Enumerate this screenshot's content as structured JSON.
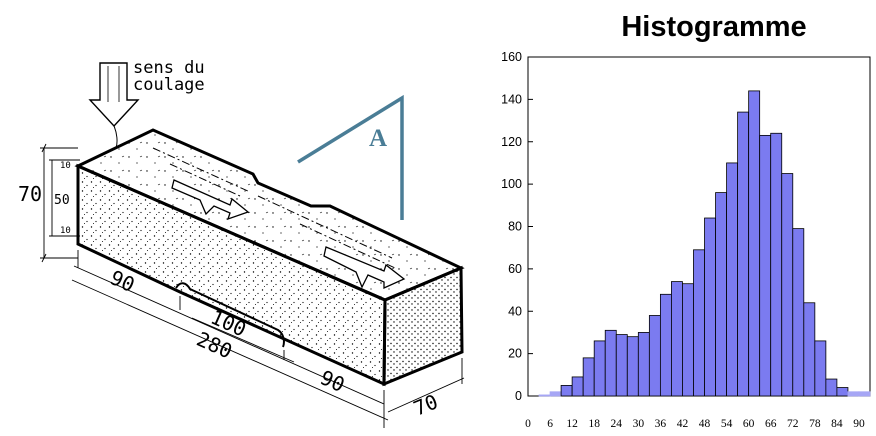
{
  "specimen": {
    "pour_label_line1": "sens du",
    "pour_label_line2": "coulage",
    "section_marker": "A",
    "dims": {
      "height_total": "70",
      "height_middle": "50",
      "offset_top": "10",
      "offset_bottom": "10",
      "length_left": "90",
      "length_middle": "100",
      "length_total": "280",
      "length_right": "90",
      "width": "70"
    }
  },
  "chart_data": {
    "type": "bar",
    "title": "Histogramme",
    "xlabel": "",
    "ylabel": "",
    "ylim": [
      0,
      160
    ],
    "xlim": [
      0,
      93
    ],
    "bin_width": 3,
    "y_ticks": [
      0,
      20,
      40,
      60,
      80,
      100,
      120,
      140,
      160
    ],
    "x_ticks": [
      0,
      6,
      12,
      18,
      24,
      30,
      36,
      42,
      48,
      54,
      60,
      66,
      72,
      78,
      84,
      90
    ],
    "bar_color": "#7b7bf0",
    "tail_color": "#a6a6f5",
    "bins_start": [
      3,
      6,
      9,
      12,
      15,
      18,
      21,
      24,
      27,
      30,
      33,
      36,
      39,
      42,
      45,
      48,
      51,
      54,
      57,
      60,
      63,
      66,
      69,
      72,
      75,
      78,
      81,
      84,
      87,
      90
    ],
    "values": [
      0.5,
      2,
      5,
      9,
      18,
      26,
      31,
      29,
      28,
      30,
      38,
      48,
      54,
      53,
      69,
      84,
      96,
      110,
      134,
      144,
      123,
      124,
      105,
      79,
      44,
      26,
      8,
      4,
      2,
      2
    ],
    "tail_bins": [
      0,
      1,
      28,
      29
    ],
    "grid": false
  }
}
